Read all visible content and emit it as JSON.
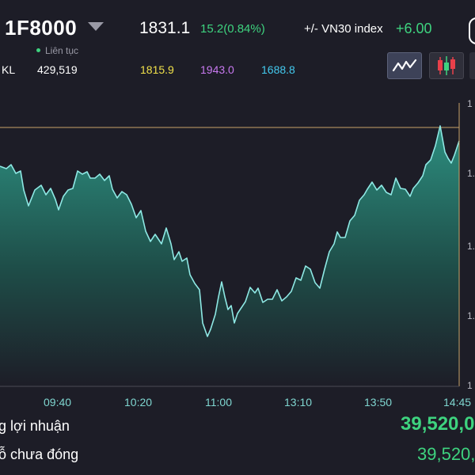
{
  "header": {
    "symbol": "1F8000",
    "price": "1831.1",
    "change": "15.2(0.84%)",
    "vn30_label": "+/- VN30 index",
    "vn30_value": "+6.00",
    "status": "Liên tục",
    "kl_label": "KL",
    "kl_value": "429,519",
    "ref_price": "1815.9",
    "ceil_price": "1943.0",
    "floor_price": "1688.8"
  },
  "toolbar": {
    "line_chart_icon": "line-chart-icon",
    "candlestick_icon": "candlestick-chart-icon"
  },
  "colors": {
    "background": "#1d1d27",
    "up": "#3ed37f",
    "line": "#8ee8e4",
    "reference_line": "#c9a46a",
    "ref_price": "#f0e04a",
    "ceil_price": "#c879f0",
    "floor_price": "#43c9ee"
  },
  "chart": {
    "x_ticks": [
      "09:40",
      "10:20",
      "11:00",
      "13:10",
      "13:50",
      "14:45"
    ],
    "y_ticks_clipped": [
      "1",
      "1.",
      "1.",
      "1.",
      "1"
    ]
  },
  "summary": {
    "row1_label": "g lợi nhuận",
    "row1_value": "39,520,0",
    "row2_label": "ỗ chưa đóng",
    "row2_value": "39,520,"
  }
}
